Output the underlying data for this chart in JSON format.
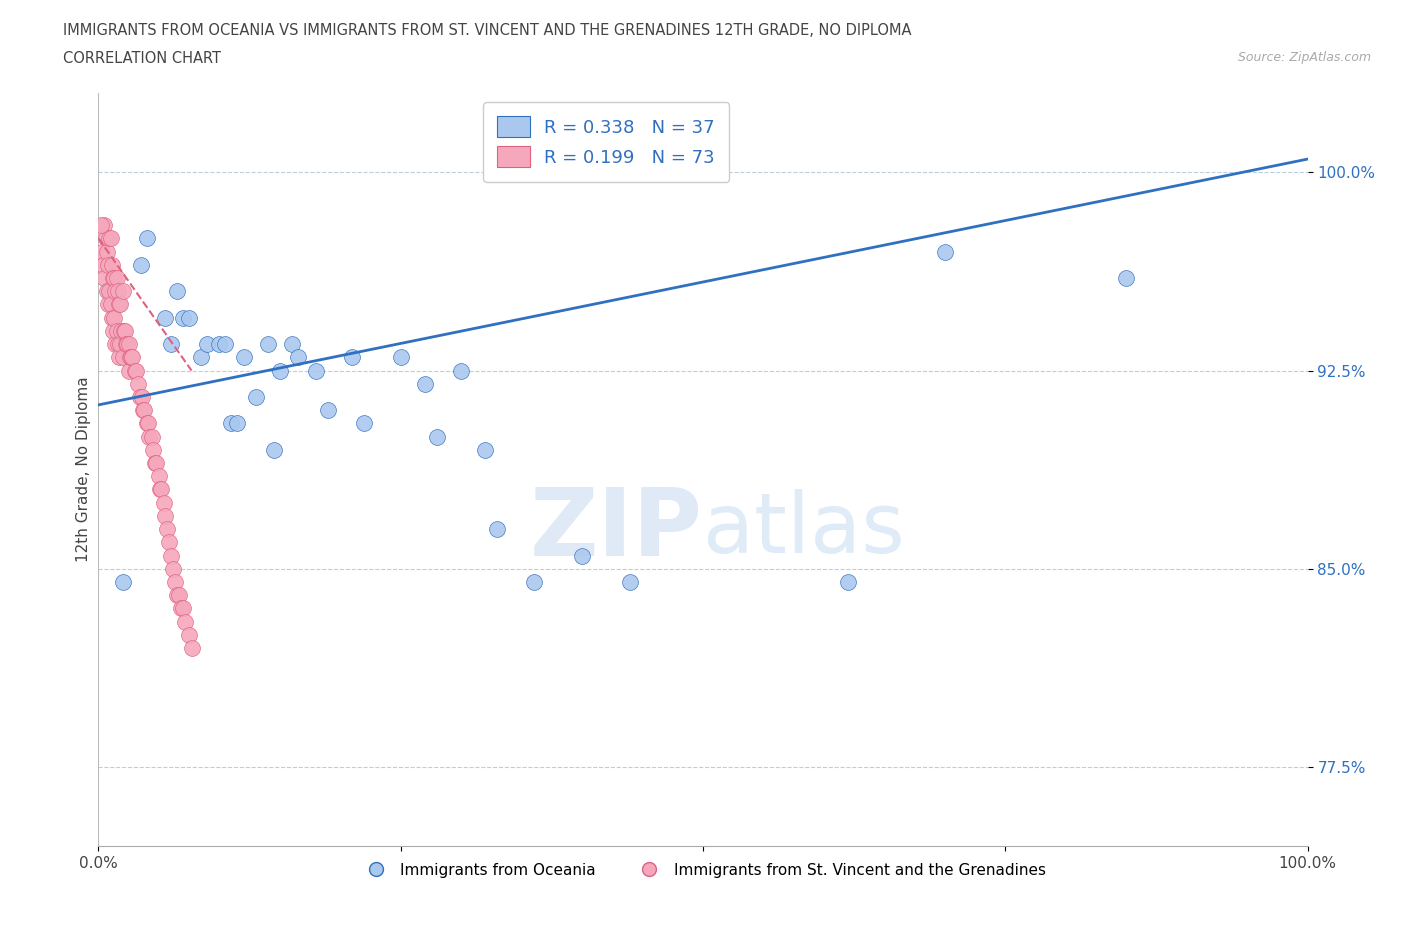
{
  "title_line1": "IMMIGRANTS FROM OCEANIA VS IMMIGRANTS FROM ST. VINCENT AND THE GRENADINES 12TH GRADE, NO DIPLOMA",
  "title_line2": "CORRELATION CHART",
  "source_text": "Source: ZipAtlas.com",
  "ylabel": "12th Grade, No Diploma",
  "xlim": [
    0.0,
    1.0
  ],
  "ylim": [
    0.745,
    1.03
  ],
  "yticks": [
    0.775,
    0.85,
    0.925,
    1.0
  ],
  "ytick_labels": [
    "77.5%",
    "85.0%",
    "92.5%",
    "100.0%"
  ],
  "watermark_zip": "ZIP",
  "watermark_atlas": "atlas",
  "legend_label_blue": "Immigrants from Oceania",
  "legend_label_pink": "Immigrants from St. Vincent and the Grenadines",
  "dot_color_blue": "#aac8ee",
  "dot_color_pink": "#f5a8bc",
  "line_color_blue": "#3070c0",
  "line_color_pink": "#e06080",
  "blue_scatter_x": [
    0.02,
    0.035,
    0.04,
    0.055,
    0.06,
    0.065,
    0.07,
    0.075,
    0.085,
    0.09,
    0.1,
    0.105,
    0.11,
    0.115,
    0.12,
    0.13,
    0.14,
    0.145,
    0.15,
    0.16,
    0.165,
    0.18,
    0.19,
    0.21,
    0.22,
    0.25,
    0.27,
    0.28,
    0.3,
    0.32,
    0.33,
    0.36,
    0.4,
    0.44,
    0.62,
    0.7,
    0.85
  ],
  "blue_scatter_y": [
    0.845,
    0.965,
    0.975,
    0.945,
    0.935,
    0.955,
    0.945,
    0.945,
    0.93,
    0.935,
    0.935,
    0.935,
    0.905,
    0.905,
    0.93,
    0.915,
    0.935,
    0.895,
    0.925,
    0.935,
    0.93,
    0.925,
    0.91,
    0.93,
    0.905,
    0.93,
    0.92,
    0.9,
    0.925,
    0.895,
    0.865,
    0.845,
    0.855,
    0.845,
    0.845,
    0.97,
    0.96
  ],
  "pink_scatter_x": [
    0.003,
    0.004,
    0.005,
    0.005,
    0.006,
    0.007,
    0.007,
    0.008,
    0.008,
    0.009,
    0.009,
    0.01,
    0.01,
    0.011,
    0.011,
    0.012,
    0.012,
    0.013,
    0.013,
    0.014,
    0.014,
    0.015,
    0.015,
    0.016,
    0.016,
    0.017,
    0.017,
    0.018,
    0.018,
    0.019,
    0.02,
    0.02,
    0.021,
    0.022,
    0.023,
    0.024,
    0.025,
    0.025,
    0.026,
    0.027,
    0.028,
    0.03,
    0.031,
    0.033,
    0.034,
    0.036,
    0.037,
    0.038,
    0.04,
    0.041,
    0.042,
    0.044,
    0.045,
    0.047,
    0.048,
    0.05,
    0.051,
    0.052,
    0.054,
    0.055,
    0.057,
    0.058,
    0.06,
    0.062,
    0.063,
    0.065,
    0.067,
    0.068,
    0.07,
    0.072,
    0.075,
    0.077,
    0.002
  ],
  "pink_scatter_y": [
    0.97,
    0.965,
    0.98,
    0.96,
    0.975,
    0.97,
    0.955,
    0.965,
    0.95,
    0.975,
    0.955,
    0.975,
    0.95,
    0.965,
    0.945,
    0.96,
    0.94,
    0.96,
    0.945,
    0.955,
    0.935,
    0.96,
    0.94,
    0.955,
    0.935,
    0.95,
    0.93,
    0.95,
    0.935,
    0.94,
    0.955,
    0.93,
    0.94,
    0.94,
    0.935,
    0.935,
    0.935,
    0.925,
    0.93,
    0.93,
    0.93,
    0.925,
    0.925,
    0.92,
    0.915,
    0.915,
    0.91,
    0.91,
    0.905,
    0.905,
    0.9,
    0.9,
    0.895,
    0.89,
    0.89,
    0.885,
    0.88,
    0.88,
    0.875,
    0.87,
    0.865,
    0.86,
    0.855,
    0.85,
    0.845,
    0.84,
    0.84,
    0.835,
    0.835,
    0.83,
    0.825,
    0.82,
    0.98
  ],
  "blue_trend_x0": 0.0,
  "blue_trend_x1": 1.0,
  "blue_trend_y0": 0.912,
  "blue_trend_y1": 1.005,
  "pink_trend_x0": 0.0,
  "pink_trend_x1": 0.077,
  "pink_trend_y0": 0.975,
  "pink_trend_y1": 0.925
}
